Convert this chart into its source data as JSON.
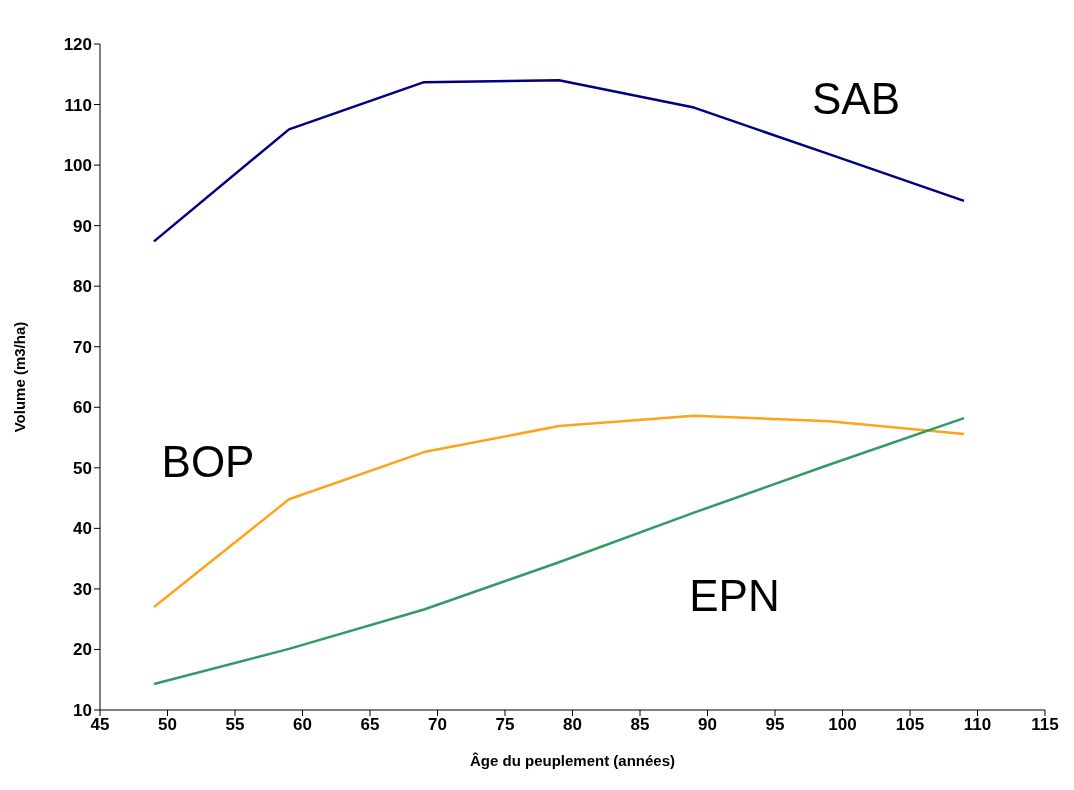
{
  "chart_data": {
    "type": "line",
    "xlabel": "Âge du peuplement (années)",
    "ylabel": "Volume (m3/ha)",
    "x": [
      49,
      59,
      69,
      79,
      89,
      99,
      109
    ],
    "series": [
      {
        "name": "SAB",
        "color": "#000080",
        "values": [
          87.4,
          105.9,
          113.7,
          114,
          109.5,
          101.8,
          94.1
        ]
      },
      {
        "name": "BOP",
        "color": "#ffa31a",
        "values": [
          27,
          44.8,
          52.6,
          56.9,
          58.6,
          57.7,
          55.6
        ]
      },
      {
        "name": "EPN",
        "color": "#339966",
        "values": [
          14.3,
          20.1,
          26.6,
          34.4,
          42.6,
          50.5,
          58.2
        ]
      }
    ],
    "xlim": [
      45,
      115
    ],
    "xticks": [
      45,
      50,
      55,
      60,
      65,
      70,
      75,
      80,
      85,
      90,
      95,
      100,
      105,
      110,
      115
    ],
    "ylim": [
      10,
      120
    ],
    "yticks": [
      10,
      20,
      30,
      40,
      50,
      60,
      70,
      80,
      90,
      100,
      110,
      120
    ],
    "grid": false,
    "legend": false,
    "marker": "none",
    "line_style": "solid"
  }
}
